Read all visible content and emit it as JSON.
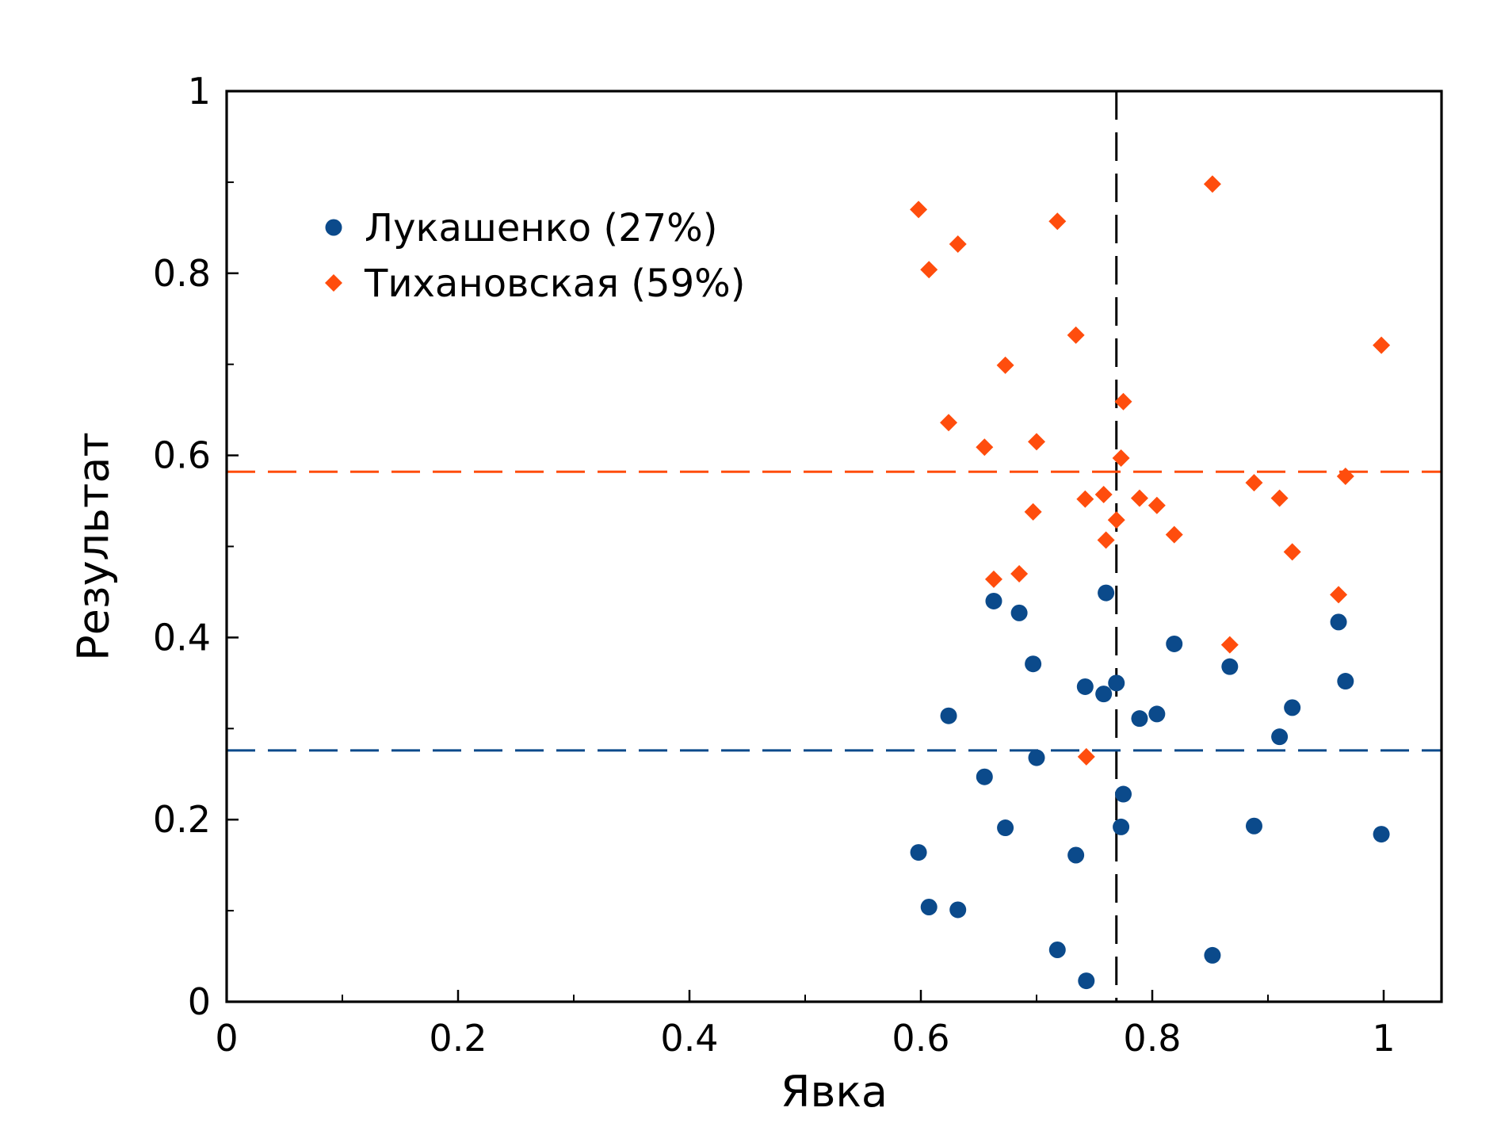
{
  "chart_data": {
    "type": "scatter",
    "xlabel": "Явка",
    "ylabel": "Результат",
    "xlim": [
      0,
      1.05
    ],
    "ylim": [
      0,
      1
    ],
    "x_ticks": [
      0,
      0.2,
      0.4,
      0.6,
      0.8,
      1
    ],
    "x_tick_labels": [
      "0",
      "0.2",
      "0.4",
      "0.6",
      "0.8",
      "1"
    ],
    "y_ticks": [
      0,
      0.2,
      0.4,
      0.6,
      0.8,
      1
    ],
    "y_tick_labels": [
      "0",
      "0.2",
      "0.4",
      "0.6",
      "0.8",
      "1"
    ],
    "x_minor_ticks": [
      0.1,
      0.3,
      0.5,
      0.7,
      0.9
    ],
    "y_minor_ticks": [
      0.1,
      0.3,
      0.5,
      0.7,
      0.9
    ],
    "grid": false,
    "legend_position": "top-left",
    "series": [
      {
        "name": "Лукашенко (27%)",
        "marker": "circle",
        "color": "#0b4a8b",
        "points": [
          [
            0.598,
            0.164
          ],
          [
            0.607,
            0.104
          ],
          [
            0.632,
            0.101
          ],
          [
            0.624,
            0.314
          ],
          [
            0.655,
            0.247
          ],
          [
            0.663,
            0.44
          ],
          [
            0.673,
            0.191
          ],
          [
            0.685,
            0.427
          ],
          [
            0.697,
            0.371
          ],
          [
            0.7,
            0.268
          ],
          [
            0.718,
            0.057
          ],
          [
            0.734,
            0.161
          ],
          [
            0.742,
            0.346
          ],
          [
            0.743,
            0.023
          ],
          [
            0.758,
            0.338
          ],
          [
            0.76,
            0.449
          ],
          [
            0.769,
            0.35
          ],
          [
            0.773,
            0.192
          ],
          [
            0.775,
            0.228
          ],
          [
            0.789,
            0.311
          ],
          [
            0.804,
            0.316
          ],
          [
            0.819,
            0.393
          ],
          [
            0.852,
            0.051
          ],
          [
            0.867,
            0.368
          ],
          [
            0.888,
            0.193
          ],
          [
            0.91,
            0.291
          ],
          [
            0.921,
            0.323
          ],
          [
            0.961,
            0.417
          ],
          [
            0.967,
            0.352
          ],
          [
            0.998,
            0.184
          ]
        ]
      },
      {
        "name": "Тихановская (59%)",
        "marker": "diamond",
        "color": "#ff4d0d",
        "points": [
          [
            0.598,
            0.87
          ],
          [
            0.607,
            0.804
          ],
          [
            0.632,
            0.832
          ],
          [
            0.624,
            0.636
          ],
          [
            0.655,
            0.609
          ],
          [
            0.663,
            0.464
          ],
          [
            0.673,
            0.699
          ],
          [
            0.685,
            0.47
          ],
          [
            0.697,
            0.538
          ],
          [
            0.7,
            0.615
          ],
          [
            0.718,
            0.857
          ],
          [
            0.734,
            0.732
          ],
          [
            0.742,
            0.552
          ],
          [
            0.743,
            0.269
          ],
          [
            0.758,
            0.557
          ],
          [
            0.76,
            0.507
          ],
          [
            0.769,
            0.529
          ],
          [
            0.773,
            0.597
          ],
          [
            0.775,
            0.659
          ],
          [
            0.789,
            0.553
          ],
          [
            0.804,
            0.545
          ],
          [
            0.819,
            0.513
          ],
          [
            0.852,
            0.898
          ],
          [
            0.867,
            0.392
          ],
          [
            0.888,
            0.57
          ],
          [
            0.91,
            0.553
          ],
          [
            0.921,
            0.494
          ],
          [
            0.961,
            0.447
          ],
          [
            0.967,
            0.577
          ],
          [
            0.998,
            0.721
          ]
        ]
      }
    ],
    "reference_lines": [
      {
        "orientation": "vertical",
        "value": 0.769,
        "color": "#000000",
        "style": "dashed"
      },
      {
        "orientation": "horizontal",
        "value": 0.582,
        "color": "#ff4d0d",
        "style": "dashed"
      },
      {
        "orientation": "horizontal",
        "value": 0.276,
        "color": "#0b4a8b",
        "style": "dashed"
      }
    ]
  }
}
